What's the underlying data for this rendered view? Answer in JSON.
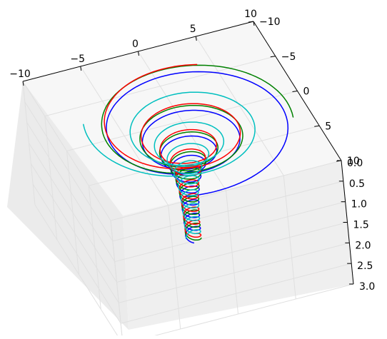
{
  "chart_data": {
    "type": "line",
    "projection": "3d",
    "title": "",
    "xlabel": "",
    "ylabel": "",
    "zlabel": "",
    "grid": true,
    "xlim": [
      -10,
      10
    ],
    "ylim": [
      -10,
      10
    ],
    "zlim": [
      0,
      3
    ],
    "z_axis_inverted": true,
    "xticks": [
      -10,
      -5,
      0,
      5,
      10
    ],
    "yticks": [
      -10,
      -5,
      0,
      5,
      10
    ],
    "zticks": [
      0.0,
      0.5,
      1.0,
      1.5,
      2.0,
      2.5,
      3.0
    ],
    "xtick_labels": [
      "−10",
      "−5",
      "0",
      "5",
      "10"
    ],
    "ytick_labels": [
      "−10",
      "−5",
      "0",
      "5",
      "10"
    ],
    "ztick_labels": [
      "0.0",
      "0.5",
      "1.0",
      "1.5",
      "2.0",
      "2.5",
      "3.0"
    ],
    "pane_color": "#f2f2f2",
    "series": [
      {
        "color": "#0000ff",
        "radius_at_top": 10,
        "phase_deg": 110
      },
      {
        "color": "#008000",
        "radius_at_top": 9,
        "phase_deg": 20
      },
      {
        "color": "#ff0000",
        "radius_at_top": 7.5,
        "phase_deg": 300
      },
      {
        "color": "#00bfbf",
        "radius_at_top": 8,
        "phase_deg": 200
      }
    ],
    "spiral": {
      "z_range": [
        0.0,
        2.85
      ],
      "turns": 9,
      "radius_at_bottom": 0.6,
      "decay": 2.2
    }
  }
}
